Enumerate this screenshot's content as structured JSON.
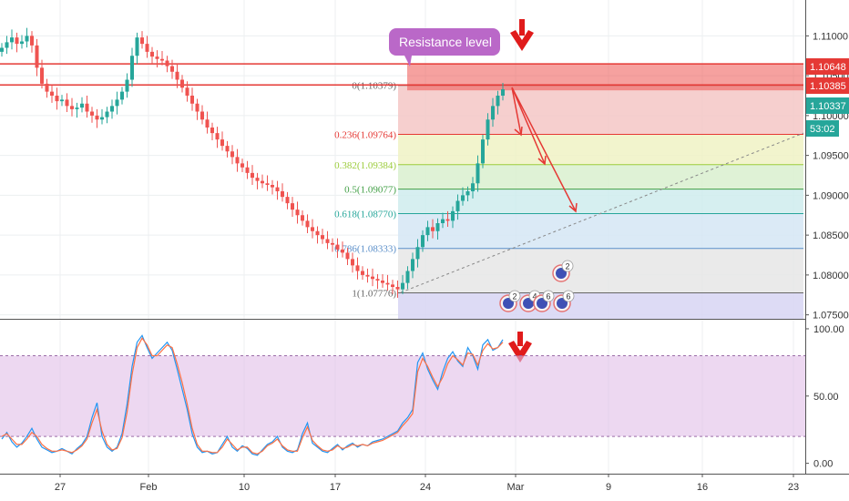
{
  "chart_data": [
    {
      "type": "candlestick",
      "title": "",
      "x_ticks": [
        "27",
        "Feb",
        "10",
        "17",
        "24",
        "Mar",
        "9",
        "16",
        "23"
      ],
      "y_ticks": [
        "1.11000",
        "1.10500",
        "1.10000",
        "1.09500",
        "1.09000",
        "1.08500",
        "1.08000",
        "1.07500"
      ],
      "ylim": [
        1.0745,
        1.1145
      ],
      "price_tags": [
        {
          "label": "1.10648",
          "value": 1.10648,
          "color": "#e53935"
        },
        {
          "label": "1.10385",
          "value": 1.10385,
          "color": "#e53935"
        },
        {
          "label": "1.10337",
          "value": 1.10337,
          "color": "#26a69a"
        },
        {
          "label": "53:02",
          "value": 1.0975,
          "color": "#26a69a"
        }
      ],
      "horizontal_lines": [
        1.10648,
        1.10385
      ],
      "annotation": {
        "text": "Resistance level",
        "color": "#ba68c8"
      },
      "fibonacci": [
        {
          "label": "0(1.10379)",
          "value": 1.10379,
          "color": "#666666",
          "fill": "#f4c7c6"
        },
        {
          "label": "0.236(1.09764)",
          "value": 1.09764,
          "color": "#e53935",
          "fill": "#f0f2c4"
        },
        {
          "label": "0.382(1.09384)",
          "value": 1.09384,
          "color": "#9ccc3c",
          "fill": "#d9f0cf"
        },
        {
          "label": "0.5(1.09077)",
          "value": 1.09077,
          "color": "#43a047",
          "fill": "#cfeced"
        },
        {
          "label": "0.618(1.08770)",
          "value": 1.0877,
          "color": "#26a69a",
          "fill": "#d5e6f4"
        },
        {
          "label": "0.786(1.08333)",
          "value": 1.08333,
          "color": "#5b8fc9",
          "fill": "#e6e6e6"
        },
        {
          "label": "1(1.07776)",
          "value": 1.07776,
          "color": "#666666",
          "fill": "#d7d5f3"
        }
      ],
      "trendline": {
        "from_value": 1.0778,
        "to_value": 1.0978
      },
      "event_markers": [
        "2",
        "4",
        "6",
        "6",
        "2"
      ],
      "close_series": [
        1.1085,
        1.1092,
        1.1098,
        1.109,
        1.1093,
        1.11,
        1.1088,
        1.106,
        1.104,
        1.103,
        1.1025,
        1.1018,
        1.102,
        1.1012,
        1.1008,
        1.101,
        1.1015,
        1.1005,
        1.1,
        1.0995,
        1.0998,
        1.1005,
        1.1012,
        1.102,
        1.103,
        1.1045,
        1.1075,
        1.1098,
        1.109,
        1.108,
        1.1074,
        1.1071,
        1.1069,
        1.1062,
        1.1055,
        1.1045,
        1.1035,
        1.1025,
        1.1015,
        1.1005,
        1.0995,
        1.0985,
        1.0978,
        1.097,
        1.0962,
        1.0955,
        1.0948,
        1.094,
        1.0935,
        1.0928,
        1.0922,
        1.0918,
        1.0915,
        1.0913,
        1.091,
        1.0905,
        1.0898,
        1.089,
        1.0882,
        1.0875,
        1.0868,
        1.086,
        1.0855,
        1.085,
        1.0845,
        1.084,
        1.0838,
        1.0832,
        1.0828,
        1.082,
        1.0812,
        1.0805,
        1.08,
        1.0798,
        1.0795,
        1.0793,
        1.079,
        1.0788,
        1.0785,
        1.0782,
        1.079,
        1.0805,
        1.082,
        1.0835,
        1.085,
        1.086,
        1.0855,
        1.0865,
        1.087,
        1.0868,
        1.088,
        1.0893,
        1.09,
        1.0905,
        1.0915,
        1.094,
        1.097,
        1.0995,
        1.1012,
        1.1025,
        1.1033
      ]
    },
    {
      "type": "line",
      "title": "",
      "y_ticks": [
        "100.00",
        "50.00",
        "0.00"
      ],
      "ylim": [
        -5,
        102
      ],
      "band": [
        20,
        80
      ],
      "series": [
        {
          "color": "#2196f3",
          "values": [
            18,
            23,
            16,
            12,
            15,
            20,
            26,
            18,
            12,
            10,
            8,
            9,
            11,
            9,
            7,
            11,
            14,
            20,
            34,
            45,
            20,
            12,
            9,
            12,
            22,
            44,
            72,
            90,
            95,
            86,
            78,
            82,
            86,
            90,
            84,
            70,
            55,
            40,
            22,
            12,
            8,
            9,
            7,
            8,
            14,
            20,
            12,
            9,
            13,
            11,
            7,
            6,
            10,
            14,
            16,
            20,
            12,
            9,
            8,
            10,
            22,
            30,
            15,
            12,
            9,
            8,
            11,
            14,
            10,
            13,
            15,
            12,
            14,
            13,
            16,
            17,
            18,
            20,
            22,
            24,
            30,
            34,
            40,
            75,
            82,
            70,
            62,
            55,
            68,
            78,
            83,
            76,
            72,
            86,
            80,
            70,
            88,
            92,
            84,
            86,
            92
          ]
        },
        {
          "color": "#ff7043",
          "values": [
            20,
            22,
            18,
            14,
            14,
            18,
            23,
            20,
            14,
            11,
            9,
            9,
            10,
            9,
            8,
            10,
            13,
            18,
            30,
            40,
            24,
            14,
            10,
            11,
            19,
            38,
            66,
            86,
            93,
            88,
            80,
            80,
            84,
            88,
            86,
            74,
            60,
            44,
            26,
            14,
            9,
            9,
            8,
            8,
            12,
            18,
            14,
            10,
            12,
            12,
            8,
            7,
            9,
            13,
            15,
            18,
            13,
            10,
            9,
            9,
            19,
            27,
            17,
            13,
            10,
            9,
            10,
            13,
            11,
            12,
            14,
            13,
            14,
            13,
            15,
            16,
            17,
            19,
            21,
            23,
            28,
            32,
            37,
            68,
            78,
            72,
            64,
            57,
            64,
            74,
            80,
            77,
            73,
            82,
            81,
            73,
            84,
            89,
            85,
            86,
            90
          ]
        }
      ],
      "x_ticks": [
        "27",
        "Feb",
        "10",
        "17",
        "24",
        "Mar",
        "9",
        "16",
        "23"
      ]
    }
  ]
}
